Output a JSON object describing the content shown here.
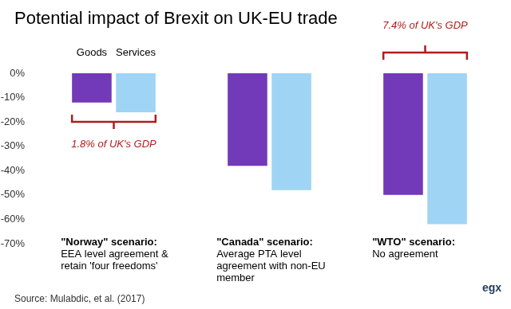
{
  "chart_data": {
    "type": "bar",
    "title": "Potential impact of Brexit on UK-EU trade",
    "categories": [
      "\"Norway\" scenario:",
      "\"Canada\" scenario:",
      "\"WTO\" scenario:"
    ],
    "category_notes": [
      [
        "EEA level agreement &",
        "retain 'four freedoms'"
      ],
      [
        "Average PTA level",
        "agreement with non-EU",
        "member"
      ],
      [
        "No agreement"
      ]
    ],
    "series": [
      {
        "name": "Goods",
        "color": "#7239b8",
        "values": [
          -12,
          -38,
          -50
        ]
      },
      {
        "name": "Services",
        "color": "#9fd4f4",
        "values": [
          -16,
          -48,
          -62
        ]
      }
    ],
    "ylim": [
      -70,
      0
    ],
    "yticks": [
      {
        "value": -70,
        "label": "-70%"
      },
      {
        "value": -60,
        "label": "-60%"
      },
      {
        "value": -50,
        "label": "-50%"
      },
      {
        "value": -40,
        "label": "-40%"
      },
      {
        "value": -30,
        "label": "-30%"
      },
      {
        "value": -20,
        "label": "-20%"
      },
      {
        "value": -10,
        "label": "-10%"
      },
      {
        "value": 0,
        "label": "0%"
      }
    ],
    "grid": false,
    "annotations": [
      {
        "text": "1.8% of UK's GDP",
        "category": "\"Norway\" scenario:"
      },
      {
        "text": "7.4% of UK's GDP",
        "category": "\"WTO\" scenario:"
      }
    ],
    "source": "Source: Mulabdic, et al. (2017)",
    "logo": "egx"
  }
}
